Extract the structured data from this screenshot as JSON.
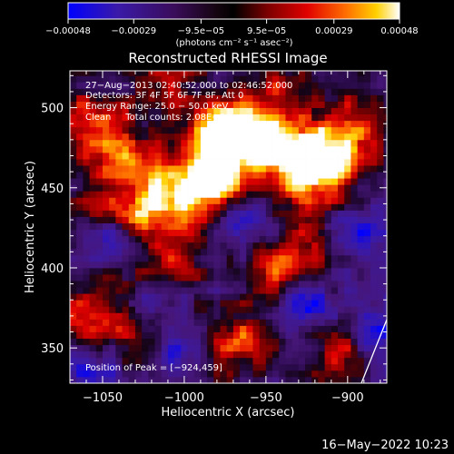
{
  "chart_data": {
    "type": "heatmap",
    "title": "Reconstructed RHESSI Image",
    "xlabel": "Heliocentric X (arcsec)",
    "ylabel": "Heliocentric Y (arcsec)",
    "xlim": [
      -1070,
      -876
    ],
    "ylim": [
      328,
      523
    ],
    "xticks": [
      -1050,
      -1000,
      -950,
      -900
    ],
    "xtick_labels": [
      "−1050",
      "−1000",
      "−950",
      "−900"
    ],
    "yticks": [
      350,
      400,
      450,
      500
    ],
    "ytick_labels": [
      "350",
      "400",
      "450",
      "500"
    ],
    "colorbar": {
      "range": [
        -0.00048,
        0.00048
      ],
      "ticks": [
        -0.00048,
        -0.00029,
        -9.5e-05,
        9.5e-05,
        0.00029,
        0.00048
      ],
      "tick_labels": [
        "−0.00048",
        "−0.00029",
        "−9.5e−05",
        "9.5e−05",
        "0.00029",
        "0.00048"
      ],
      "unit_label": "(photons cm⁻² s⁻¹ asec⁻²)"
    },
    "annotations": [
      "27−Aug−2013 02:40:52.000 to 02:46:52.000",
      "Detectors: 3F 4F 5F 6F 7F 8F, Att 0",
      "Energy Range: 25.0 − 50.0 keV",
      "Clean     Total counts: 2.08E+04"
    ],
    "peak_label": "Position of Peak = [−924,459]",
    "peak_position": [
      -924,
      459
    ],
    "limb_visible": true,
    "hot_spots": [
      {
        "x": -924,
        "y": 459,
        "intensity": 1.0
      },
      {
        "x": -935,
        "y": 475,
        "intensity": 0.85
      },
      {
        "x": -980,
        "y": 470,
        "intensity": 0.9
      },
      {
        "x": -985,
        "y": 450,
        "intensity": 0.8
      },
      {
        "x": -975,
        "y": 490,
        "intensity": 0.7
      },
      {
        "x": -960,
        "y": 485,
        "intensity": 0.6
      },
      {
        "x": -900,
        "y": 470,
        "intensity": 0.65
      },
      {
        "x": -895,
        "y": 495,
        "intensity": 0.55
      },
      {
        "x": -1060,
        "y": 490,
        "intensity": 0.7
      },
      {
        "x": -1045,
        "y": 475,
        "intensity": 0.55
      },
      {
        "x": -1020,
        "y": 460,
        "intensity": 0.6
      },
      {
        "x": -1005,
        "y": 440,
        "intensity": 0.55
      },
      {
        "x": -1050,
        "y": 440,
        "intensity": 0.5
      },
      {
        "x": -1025,
        "y": 430,
        "intensity": 0.6
      },
      {
        "x": -1005,
        "y": 400,
        "intensity": 0.55
      },
      {
        "x": -1040,
        "y": 395,
        "intensity": 0.45
      },
      {
        "x": -950,
        "y": 400,
        "intensity": 0.5
      },
      {
        "x": -930,
        "y": 405,
        "intensity": 0.7
      },
      {
        "x": -1060,
        "y": 365,
        "intensity": 0.6
      },
      {
        "x": -1030,
        "y": 360,
        "intensity": 0.45
      },
      {
        "x": -960,
        "y": 360,
        "intensity": 0.55
      },
      {
        "x": -980,
        "y": 345,
        "intensity": 0.5
      },
      {
        "x": -905,
        "y": 345,
        "intensity": 0.6
      },
      {
        "x": -1010,
        "y": 515,
        "intensity": 0.55
      },
      {
        "x": -940,
        "y": 515,
        "intensity": 0.5
      }
    ],
    "cold_spots": [
      {
        "x": -1045,
        "y": 415,
        "intensity": -0.6
      },
      {
        "x": -1020,
        "y": 380,
        "intensity": -0.5
      },
      {
        "x": -960,
        "y": 425,
        "intensity": -0.55
      },
      {
        "x": -925,
        "y": 380,
        "intensity": -0.6
      },
      {
        "x": -890,
        "y": 420,
        "intensity": -0.5
      },
      {
        "x": -1000,
        "y": 345,
        "intensity": -0.45
      },
      {
        "x": -1060,
        "y": 340,
        "intensity": -0.5
      },
      {
        "x": -880,
        "y": 360,
        "intensity": -0.55
      }
    ]
  },
  "footer_timestamp": "16−May−2022 10:23"
}
